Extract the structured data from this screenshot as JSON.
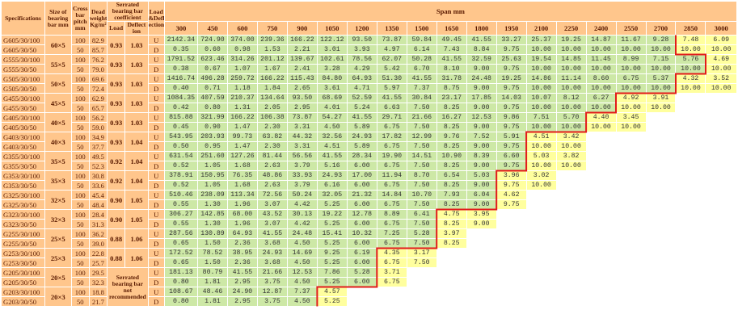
{
  "headers": {
    "specifications": "Specifications",
    "size": "Size of bearing bar mm",
    "cross": "Cross bar pitch mm",
    "weight": "Dead weight Kg/m²",
    "coeff": "Serrated bearing bar coefficient",
    "load": "Load",
    "deflect": "Deflect ion",
    "loaddefl": "Load &Defl ection",
    "span": "Span mm"
  },
  "spans": [
    "300",
    "450",
    "600",
    "750",
    "900",
    "1050",
    "1200",
    "1350",
    "1500",
    "1650",
    "1800",
    "1950",
    "2100",
    "2250",
    "2400",
    "2550",
    "2700",
    "2850",
    "3000"
  ],
  "groups": [
    {
      "size": "60×5",
      "load": "0.93",
      "deflect": "1.03",
      "boundary": 17,
      "rows": [
        {
          "spec": "G605/30/100",
          "cross": "100",
          "weight": "82.9",
          "ld": "U",
          "values": [
            "2142.34",
            "724.90",
            "374.00",
            "239.36",
            "166.22",
            "122.12",
            "93.50",
            "73.87",
            "59.84",
            "49.45",
            "41.55",
            "33.27",
            "25.37",
            "19.25",
            "14.87",
            "11.67",
            "9.28",
            "7.48",
            "6.09"
          ]
        },
        {
          "spec": "G605/30/50",
          "cross": "50",
          "weight": "85.7",
          "ld": "D",
          "values": [
            "0.35",
            "0.60",
            "0.98",
            "1.53",
            "2.21",
            "3.01",
            "3.93",
            "4.97",
            "6.14",
            "7.43",
            "8.84",
            "9.75",
            "10.00",
            "10.00",
            "10.00",
            "10.00",
            "10.00",
            "10.00",
            "10.00"
          ]
        }
      ]
    },
    {
      "size": "55×5",
      "load": "0.93",
      "deflect": "1.03",
      "boundary": 18,
      "rows": [
        {
          "spec": "G555/30/100",
          "cross": "100",
          "weight": "76.2",
          "ld": "U",
          "values": [
            "1791.52",
            "623.46",
            "314.26",
            "201.12",
            "139.67",
            "102.61",
            "78.56",
            "62.07",
            "50.28",
            "41.55",
            "32.59",
            "25.63",
            "19.54",
            "14.85",
            "11.45",
            "8.99",
            "7.15",
            "5.76",
            "4.69"
          ]
        },
        {
          "spec": "G555/30/50",
          "cross": "50",
          "weight": "79.0",
          "ld": "D",
          "values": [
            "0.38",
            "0.67",
            "1.07",
            "1.67",
            "2.41",
            "3.28",
            "4.29",
            "5.42",
            "6.70",
            "8.10",
            "9.00",
            "9.75",
            "10.00",
            "10.00",
            "10.00",
            "10.00",
            "10.00",
            "10.00",
            "10.00"
          ]
        }
      ]
    },
    {
      "size": "50×5",
      "load": "0.93",
      "deflect": "1.03",
      "boundary": 17,
      "rows": [
        {
          "spec": "G505/30/100",
          "cross": "100",
          "weight": "69.6",
          "ld": "U",
          "values": [
            "1416.74",
            "496.28",
            "259.72",
            "166.22",
            "115.43",
            "84.80",
            "64.93",
            "51.30",
            "41.55",
            "31.78",
            "24.48",
            "19.25",
            "14.86",
            "11.14",
            "8.60",
            "6.75",
            "5.37",
            "4.32",
            "3.52"
          ]
        },
        {
          "spec": "G505/30/50",
          "cross": "50",
          "weight": "72.4",
          "ld": "D",
          "values": [
            "0.40",
            "0.71",
            "1.18",
            "1.84",
            "2.65",
            "3.61",
            "4.71",
            "5.97",
            "7.37",
            "8.75",
            "9.00",
            "9.75",
            "10.00",
            "10.00",
            "10.00",
            "10.00",
            "10.00",
            "10.00",
            "10.00"
          ]
        }
      ]
    },
    {
      "size": "45×5",
      "load": "0.93",
      "deflect": "1.03",
      "boundary": 15,
      "rows": [
        {
          "spec": "G455/30/100",
          "cross": "100",
          "weight": "62.9",
          "ld": "U",
          "values": [
            "1084.35",
            "407.59",
            "210.37",
            "134.64",
            "93.50",
            "68.69",
            "52.59",
            "41.55",
            "30.84",
            "23.17",
            "17.85",
            "14.03",
            "10.07",
            "8.12",
            "6.27",
            "4.92",
            "3.91",
            "",
            ""
          ]
        },
        {
          "spec": "G455/30/50",
          "cross": "50",
          "weight": "65.7",
          "ld": "D",
          "values": [
            "0.42",
            "0.80",
            "1.31",
            "2.05",
            "2.95",
            "4.01",
            "5.24",
            "6.63",
            "7.50",
            "8.25",
            "9.00",
            "9.75",
            "10.00",
            "10.00",
            "10.00",
            "10.00",
            "10.00",
            "",
            ""
          ]
        }
      ]
    },
    {
      "size": "40×5",
      "load": "0.93",
      "deflect": "1.03",
      "boundary": 14,
      "rows": [
        {
          "spec": "G405/30/100",
          "cross": "100",
          "weight": "56.2",
          "ld": "U",
          "values": [
            "815.88",
            "321.99",
            "166.22",
            "106.38",
            "73.87",
            "54.27",
            "41.55",
            "29.71",
            "21.66",
            "16.27",
            "12.53",
            "9.86",
            "7.51",
            "5.70",
            "4.40",
            "3.45",
            "",
            "",
            ""
          ]
        },
        {
          "spec": "G405/30/50",
          "cross": "50",
          "weight": "59.0",
          "ld": "D",
          "values": [
            "0.45",
            "0.90",
            "1.47",
            "2.30",
            "3.31",
            "4.50",
            "5.89",
            "6.75",
            "7.50",
            "8.25",
            "9.00",
            "9.75",
            "10.00",
            "10.00",
            "10.00",
            "10.00",
            "",
            "",
            ""
          ]
        }
      ]
    },
    {
      "size": "40×3",
      "load": "0.93",
      "deflect": "1.04",
      "boundary": 12,
      "rows": [
        {
          "spec": "G403/30/100",
          "cross": "100",
          "weight": "34.9",
          "ld": "U",
          "values": [
            "543.95",
            "203.93",
            "99.73",
            "63.82",
            "44.32",
            "32.56",
            "24.93",
            "17.82",
            "12.99",
            "9.76",
            "7.52",
            "5.91",
            "4.51",
            "3.42",
            "",
            "",
            "",
            "",
            ""
          ]
        },
        {
          "spec": "G403/30/50",
          "cross": "50",
          "weight": "37.7",
          "ld": "D",
          "values": [
            "0.50",
            "0.95",
            "1.47",
            "2.30",
            "3.31",
            "4.51",
            "5.89",
            "6.75",
            "7.50",
            "8.25",
            "9.00",
            "9.75",
            "10.00",
            "10.00",
            "",
            "",
            "",
            "",
            ""
          ]
        }
      ]
    },
    {
      "size": "35×5",
      "load": "0.92",
      "deflect": "1.04",
      "boundary": 12,
      "rows": [
        {
          "spec": "G355/30/100",
          "cross": "100",
          "weight": "49.5",
          "ld": "U",
          "values": [
            "631.54",
            "251.60",
            "127.26",
            "81.44",
            "56.56",
            "41.55",
            "28.34",
            "19.90",
            "14.51",
            "10.90",
            "8.39",
            "6.60",
            "5.03",
            "3.82",
            "",
            "",
            "",
            "",
            ""
          ]
        },
        {
          "spec": "G355/30/50",
          "cross": "50",
          "weight": "52.3",
          "ld": "D",
          "values": [
            "0.52",
            "1.05",
            "1.68",
            "2.63",
            "3.79",
            "5.16",
            "6.00",
            "6.75",
            "7.50",
            "8.25",
            "9.00",
            "9.75",
            "10.00",
            "10.00",
            "",
            "",
            "",
            "",
            ""
          ]
        }
      ]
    },
    {
      "size": "35×3",
      "load": "0.92",
      "deflect": "1.04",
      "boundary": 11,
      "rows": [
        {
          "spec": "G353/30/100",
          "cross": "100",
          "weight": "30.8",
          "ld": "U",
          "values": [
            "378.91",
            "150.95",
            "76.35",
            "48.86",
            "33.93",
            "24.93",
            "17.00",
            "11.94",
            "8.70",
            "6.54",
            "5.03",
            "3.96",
            "3.02",
            "",
            "",
            "",
            "",
            "",
            ""
          ]
        },
        {
          "spec": "G353/30/50",
          "cross": "50",
          "weight": "33.6",
          "ld": "D",
          "values": [
            "0.52",
            "1.05",
            "1.68",
            "2.63",
            "3.79",
            "6.16",
            "6.00",
            "6.75",
            "7.50",
            "8.25",
            "9.00",
            "9.75",
            "10.00",
            "",
            "",
            "",
            "",
            "",
            ""
          ]
        }
      ]
    },
    {
      "size": "32×5",
      "load": "0.90",
      "deflect": "1.05",
      "boundary": 11,
      "rows": [
        {
          "spec": "G325/30/100",
          "cross": "100",
          "weight": "45.4",
          "ld": "U",
          "values": [
            "510.46",
            "238.09",
            "113.34",
            "72.56",
            "50.24",
            "32.05",
            "21.32",
            "14.84",
            "10.70",
            "7.93",
            "6.04",
            "4.62",
            "",
            "",
            "",
            "",
            "",
            "",
            ""
          ]
        },
        {
          "spec": "G325/30/50",
          "cross": "50",
          "weight": "48.4",
          "ld": "D",
          "values": [
            "0.55",
            "1.30",
            "1.96",
            "3.07",
            "4.42",
            "5.25",
            "6.00",
            "6.75",
            "7.50",
            "8.25",
            "9.00",
            "9.75",
            "",
            "",
            "",
            "",
            "",
            "",
            ""
          ]
        }
      ]
    },
    {
      "size": "32×3",
      "load": "0.90",
      "deflect": "1.05",
      "boundary": 9,
      "rows": [
        {
          "spec": "G323/30/100",
          "cross": "100",
          "weight": "28.4",
          "ld": "U",
          "values": [
            "306.27",
            "142.85",
            "68.00",
            "43.52",
            "30.13",
            "19.22",
            "12.78",
            "8.89",
            "6.41",
            "4.75",
            "3.95",
            "",
            "",
            "",
            "",
            "",
            "",
            "",
            ""
          ]
        },
        {
          "spec": "G323/30/50",
          "cross": "50",
          "weight": "31.3",
          "ld": "D",
          "values": [
            "0.55",
            "1.30",
            "1.96",
            "3.07",
            "4.42",
            "5.25",
            "6.00",
            "6.75",
            "7.50",
            "8.25",
            "9.00",
            "",
            "",
            "",
            "",
            "",
            "",
            "",
            ""
          ]
        }
      ]
    },
    {
      "size": "25×5",
      "load": "0.88",
      "deflect": "1.06",
      "boundary": 9,
      "rows": [
        {
          "spec": "G255/30/100",
          "cross": "100",
          "weight": "36.2",
          "ld": "U",
          "values": [
            "287.56",
            "130.89",
            "64.93",
            "41.55",
            "24.48",
            "15.41",
            "10.32",
            "7.25",
            "5.28",
            "3.97",
            "",
            "",
            "",
            "",
            "",
            "",
            "",
            "",
            ""
          ]
        },
        {
          "spec": "G255/30/50",
          "cross": "50",
          "weight": "39.0",
          "ld": "D",
          "values": [
            "0.65",
            "1.50",
            "2.36",
            "3.68",
            "4.50",
            "5.25",
            "6.00",
            "6.75",
            "7.50",
            "8.25",
            "",
            "",
            "",
            "",
            "",
            "",
            "",
            "",
            ""
          ]
        }
      ]
    },
    {
      "size": "25×3",
      "load": "0.88",
      "deflect": "1.06",
      "boundary": 7,
      "rows": [
        {
          "spec": "G253/30/100",
          "cross": "100",
          "weight": "22.8",
          "ld": "U",
          "values": [
            "172.52",
            "78.52",
            "38.95",
            "24.93",
            "14.69",
            "9.25",
            "6.19",
            "4.35",
            "3.17",
            "",
            "",
            "",
            "",
            "",
            "",
            "",
            "",
            "",
            ""
          ]
        },
        {
          "spec": "G253/30/50",
          "cross": "50",
          "weight": "25.7",
          "ld": "D",
          "values": [
            "0.65",
            "1.50",
            "2.36",
            "3.68",
            "4.50",
            "5.25",
            "6.00",
            "6.75",
            "7.50",
            "",
            "",
            "",
            "",
            "",
            "",
            "",
            "",
            "",
            ""
          ]
        }
      ]
    },
    {
      "size": "20×5",
      "load": "",
      "deflect": "",
      "boundary": 7,
      "rows": [
        {
          "spec": "G205/30/100",
          "cross": "100",
          "weight": "29.5",
          "ld": "U",
          "values": [
            "181.13",
            "80.79",
            "41.55",
            "21.66",
            "12.53",
            "7.86",
            "5.28",
            "3.71",
            "",
            "",
            "",
            "",
            "",
            "",
            "",
            "",
            "",
            "",
            ""
          ]
        },
        {
          "spec": "G205/30/50",
          "cross": "50",
          "weight": "32.3",
          "ld": "D",
          "values": [
            "0.80",
            "1.81",
            "2.95",
            "3.75",
            "4.50",
            "5.25",
            "6.00",
            "6.75",
            "",
            "",
            "",
            "",
            "",
            "",
            "",
            "",
            "",
            "",
            ""
          ]
        }
      ]
    },
    {
      "size": "20×3",
      "load": "",
      "deflect": "",
      "boundary": 5,
      "rows": [
        {
          "spec": "G203/30/100",
          "cross": "100",
          "weight": "18.8",
          "ld": "U",
          "values": [
            "108.67",
            "48.46",
            "24.90",
            "12.87",
            "7.37",
            "4.57",
            "",
            "",
            "",
            "",
            "",
            "",
            "",
            "",
            "",
            "",
            "",
            "",
            ""
          ]
        },
        {
          "spec": "G203/30/50",
          "cross": "50",
          "weight": "21.7",
          "ld": "D",
          "values": [
            "0.80",
            "1.81",
            "2.95",
            "3.75",
            "4.50",
            "5.25",
            "",
            "",
            "",
            "",
            "",
            "",
            "",
            "",
            "",
            "",
            "",
            "",
            ""
          ]
        }
      ]
    }
  ],
  "not_recommended": "Serrated bearing bar not recommended",
  "colors": {
    "header": "#ffc68c",
    "green": "#cde8a6",
    "yellow": "#ffff9e",
    "stair": "#e21b1b",
    "text": "#5a1a00"
  }
}
